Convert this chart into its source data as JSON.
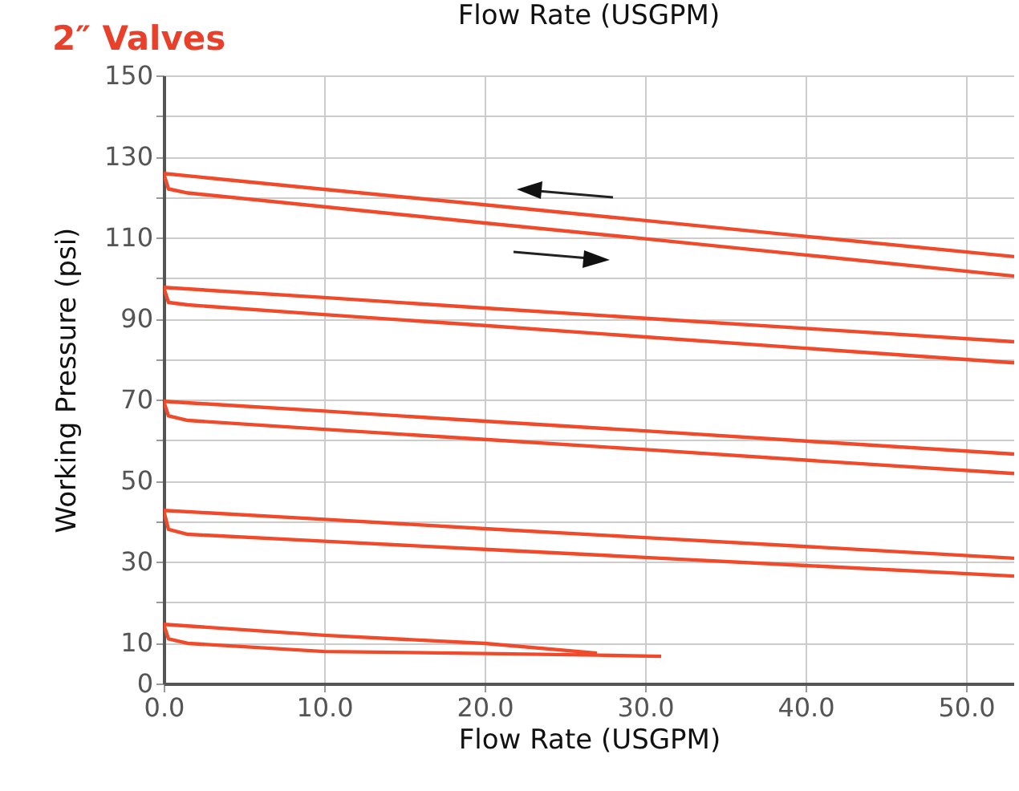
{
  "chart_data": {
    "type": "line",
    "title": "2″ Valves",
    "xlabel": "Flow Rate (USGPM)",
    "x2label": "Flow Rate (USGPM)",
    "ylabel": "Working Pressure (psi)",
    "xlim": [
      0,
      53
    ],
    "ylim": [
      0,
      150
    ],
    "xticks": [
      {
        "value": 0,
        "label": "0.0"
      },
      {
        "value": 10,
        "label": "10.0"
      },
      {
        "value": 20,
        "label": "20.0"
      },
      {
        "value": 30,
        "label": "30.0"
      },
      {
        "value": 40,
        "label": "40.0"
      },
      {
        "value": 50,
        "label": "50.0"
      }
    ],
    "yticks": [
      0,
      10,
      {
        "value": 20,
        "label": null
      },
      30,
      {
        "value": 40,
        "label": null
      },
      50,
      {
        "value": 60,
        "label": null
      },
      70,
      {
        "value": 80,
        "label": null
      },
      90,
      {
        "value": 100,
        "label": null
      },
      110,
      {
        "value": 120,
        "label": null
      },
      130,
      {
        "value": 140,
        "label": null
      },
      150
    ],
    "grid": true,
    "legend": false,
    "line_style": "solid",
    "series": [
      {
        "color": "#f04a2a",
        "x": [
          53,
          40,
          30,
          20,
          10,
          0,
          0.3,
          1.5,
          10,
          20,
          30,
          40,
          53
        ],
        "values": [
          105.3,
          110.3,
          114.2,
          118.1,
          121.9,
          125.8,
          122,
          121,
          117.6,
          113.6,
          109.7,
          105.7,
          100.5
        ]
      },
      {
        "color": "#f04a2a",
        "x": [
          53,
          40,
          30,
          20,
          10,
          0,
          0.3,
          1.5,
          10,
          20,
          30,
          40,
          53
        ],
        "values": [
          84.3,
          87.6,
          90.1,
          92.6,
          95.2,
          97.7,
          94,
          93.4,
          91.0,
          88.3,
          85.5,
          82.7,
          79.1
        ]
      },
      {
        "color": "#f04a2a",
        "x": [
          53,
          40,
          30,
          20,
          10,
          0,
          0.3,
          1.5,
          10,
          20,
          30,
          40,
          53
        ],
        "values": [
          56.6,
          59.8,
          62.3,
          64.7,
          67.2,
          69.6,
          66,
          64.9,
          62.7,
          60.2,
          57.7,
          55.1,
          51.8
        ]
      },
      {
        "color": "#f04a2a",
        "x": [
          53,
          40,
          30,
          20,
          10,
          0,
          0.3,
          1.5,
          10,
          20,
          30,
          40,
          53
        ],
        "values": [
          30.9,
          33.8,
          36.0,
          38.2,
          40.5,
          42.7,
          38,
          36.8,
          35.1,
          33.1,
          31.1,
          29.1,
          26.5
        ]
      },
      {
        "color": "#f04a2a",
        "x": [
          27,
          20,
          10,
          0,
          0.3,
          1.5,
          10,
          20,
          27,
          31
        ],
        "values": [
          7.5,
          9.9,
          11.9,
          14.6,
          11,
          9.9,
          7.9,
          7.4,
          7.0,
          6.7
        ]
      }
    ]
  }
}
